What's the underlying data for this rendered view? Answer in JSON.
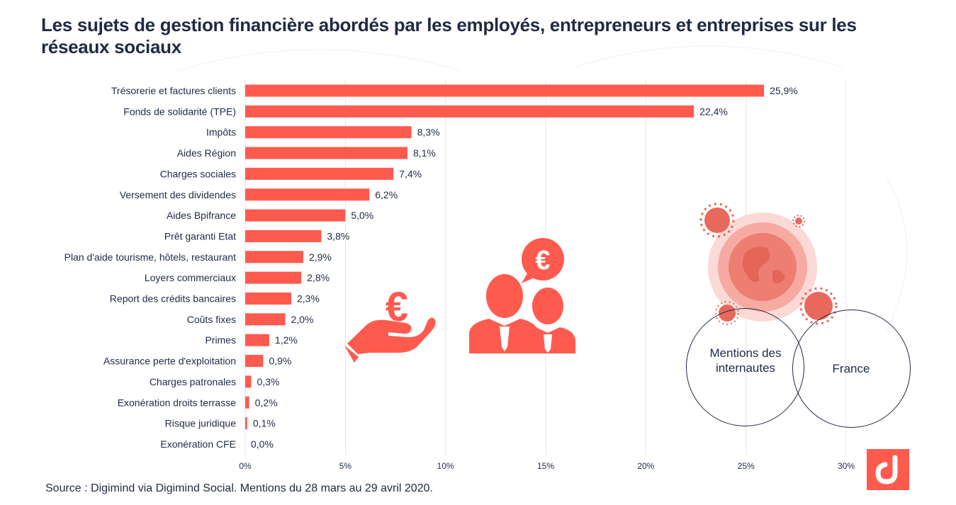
{
  "title": "Les sujets de gestion financière abordés par les employés, entrepreneurs et entreprises sur les réseaux sociaux",
  "source": "Source : Digimind via Digimind Social. Mentions du 28 mars au 29 avril 2020.",
  "venn": {
    "left": "Mentions des internautes",
    "right": "France"
  },
  "colors": {
    "bar": "#ff5a4e",
    "text": "#1f2a44",
    "grid": "#e3e3e6"
  },
  "icons": [
    "hand-euro-icon",
    "business-people-euro-icon",
    "coronavirus-globe-icon",
    "digimind-logo-icon"
  ],
  "chart_data": {
    "type": "bar",
    "orientation": "horizontal",
    "categories": [
      "Trésorerie et factures clients",
      "Fonds de solidarité (TPE)",
      "Impôts",
      "Aides Région",
      "Charges sociales",
      "Versement des dividendes",
      "Aides Bpifrance",
      "Prêt garanti Etat",
      "Plan d'aide tourisme, hôtels, restaurant",
      "Loyers commerciaux",
      "Report des crédits bancaires",
      "Coûts fixes",
      "Primes",
      "Assurance perte d'exploitation",
      "Charges patronales",
      "Exonération droits terrasse",
      "Risque juridique",
      "Exonération CFE"
    ],
    "values": [
      25.9,
      22.4,
      8.3,
      8.1,
      7.4,
      6.2,
      5.0,
      3.8,
      2.9,
      2.8,
      2.3,
      2.0,
      1.2,
      0.9,
      0.3,
      0.2,
      0.1,
      0.0
    ],
    "value_labels": [
      "25,9%",
      "22,4%",
      "8,3%",
      "8,1%",
      "7,4%",
      "6,2%",
      "5,0%",
      "3,8%",
      "2,9%",
      "2,8%",
      "2,3%",
      "2,0%",
      "1,2%",
      "0,9%",
      "0,3%",
      "0,2%",
      "0,1%",
      "0,0%"
    ],
    "xlim": [
      0,
      30
    ],
    "xticks": [
      0,
      5,
      10,
      15,
      20,
      25,
      30
    ],
    "xtick_labels": [
      "0%",
      "5%",
      "10%",
      "15%",
      "20%",
      "25%",
      "30%"
    ],
    "grid": true,
    "xlabel": "",
    "ylabel": ""
  }
}
